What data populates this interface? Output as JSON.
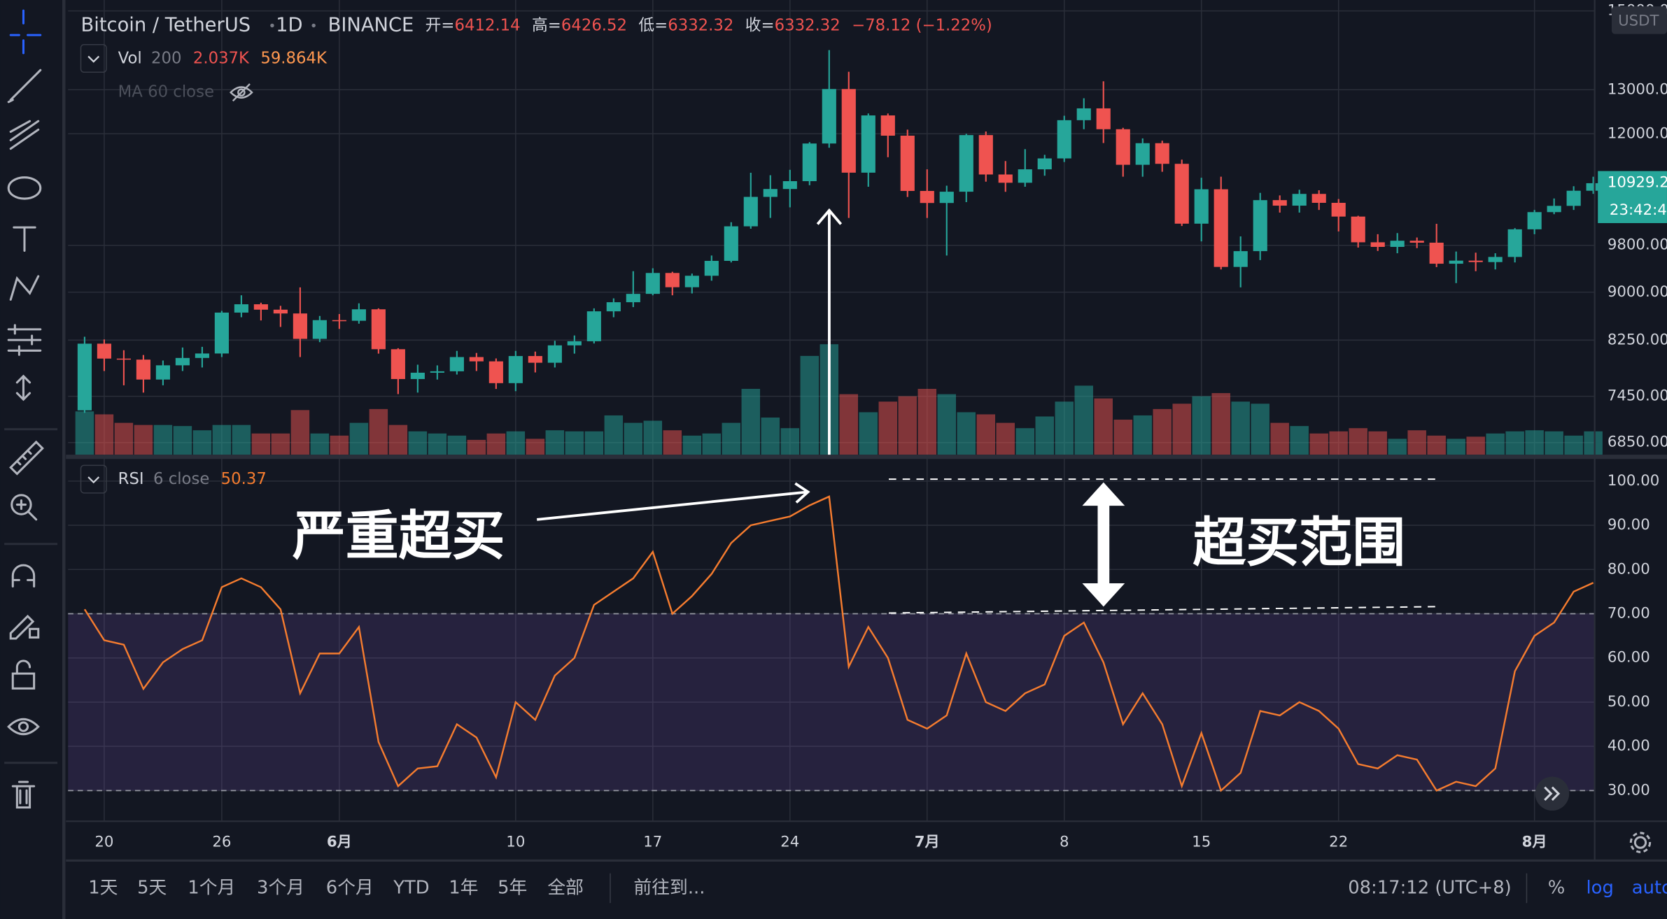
{
  "header": {
    "symbol": "Bitcoin / TetherUS",
    "interval": "1D",
    "exchange": "BINANCE",
    "open_label": "开=",
    "open": 6412.14,
    "high_label": "高=",
    "high": 6426.52,
    "low_label": "低=",
    "low": 6332.32,
    "close_label": "收=",
    "close": 6332.32,
    "change": "−78.12 (−1.22%)"
  },
  "volume_legend": {
    "name": "Vol",
    "length": "200",
    "value": "2.037K",
    "ma_value": "59.864K"
  },
  "ma_legend": {
    "name": "MA 60 close"
  },
  "rsi_legend": {
    "name": "RSI",
    "params": "6 close",
    "value": "50.37"
  },
  "price_scale": {
    "currency": "USDT",
    "last_price": "10929.2",
    "countdown": "23:42:4"
  },
  "bottom_bar": {
    "ranges": [
      "1天",
      "5天",
      "1个月",
      "3个月",
      "6个月",
      "YTD",
      "1年",
      "5年",
      "全部"
    ],
    "goto": "前往到...",
    "time": "08:17:12 (UTC+8)",
    "percent": "%",
    "log": "log",
    "auto": "auto"
  },
  "chart_data": [
    {
      "type": "candlestick",
      "log_scale": true,
      "grid": true,
      "up_color": "#26a69a",
      "down_color": "#ef5350",
      "categories": [
        null,
        "20",
        null,
        null,
        null,
        null,
        null,
        "26",
        null,
        null,
        null,
        null,
        null,
        "6月",
        null,
        null,
        null,
        null,
        null,
        null,
        null,
        null,
        "10",
        null,
        null,
        null,
        null,
        null,
        null,
        "17",
        null,
        null,
        null,
        null,
        null,
        null,
        "24",
        null,
        null,
        null,
        null,
        null,
        null,
        "7月",
        null,
        null,
        null,
        null,
        null,
        null,
        "8",
        null,
        null,
        null,
        null,
        null,
        null,
        "15",
        null,
        null,
        null,
        null,
        null,
        null,
        "22",
        null,
        null,
        null,
        null,
        null,
        null,
        null,
        null,
        null,
        "8月",
        null,
        null,
        null
      ],
      "open": [
        7262,
        8197,
        7978,
        7963,
        7680,
        7881,
        7987,
        8052,
        8673,
        8805,
        8719,
        8659,
        8269,
        8555,
        8545,
        8725,
        8115,
        7687,
        7776,
        7796,
        8000,
        7938,
        7630,
        8015,
        7918,
        8172,
        8233,
        8693,
        8838,
        8973,
        9320,
        9082,
        9273,
        9527,
        10144,
        10701,
        10855,
        11011,
        11790,
        13016,
        11182,
        12407,
        11959,
        10817,
        10583,
        10802,
        11972,
        11145,
        10979,
        11250,
        11475,
        12300,
        12567,
        12100,
        11343,
        11797,
        11363,
        10193,
        10850,
        9423,
        9697,
        10638,
        10532,
        10759,
        10586,
        10325,
        9854,
        9772,
        9882,
        9847,
        9478,
        9531,
        9506,
        9595,
        10089,
        10409,
        10528,
        10821
      ],
      "high": [
        8300,
        8260,
        8100,
        8030,
        7950,
        8140,
        8150,
        8700,
        8950,
        8830,
        8780,
        9080,
        8620,
        8650,
        8820,
        8740,
        8130,
        7890,
        7880,
        8090,
        8060,
        7980,
        8090,
        8080,
        8240,
        8320,
        8740,
        8900,
        9350,
        9400,
        9340,
        9310,
        9620,
        10220,
        11180,
        11130,
        11240,
        11820,
        13970,
        13430,
        12450,
        12450,
        12090,
        11250,
        10920,
        12000,
        12050,
        11420,
        11670,
        11550,
        12400,
        12800,
        13200,
        12130,
        11900,
        11850,
        11450,
        11080,
        11100,
        9960,
        10780,
        10730,
        10840,
        10830,
        10660,
        10340,
        10000,
        10020,
        9940,
        10190,
        9690,
        9670,
        9660,
        10110,
        10450,
        10670,
        10910,
        11100
      ],
      "low": [
        7230,
        7800,
        7600,
        7500,
        7600,
        7800,
        7850,
        8000,
        8600,
        8550,
        8450,
        8000,
        8220,
        8420,
        8500,
        8050,
        7480,
        7500,
        7680,
        7750,
        7800,
        7550,
        7520,
        7780,
        7850,
        8050,
        8200,
        8600,
        8760,
        8950,
        8950,
        8980,
        9190,
        9500,
        10100,
        10300,
        10500,
        10930,
        11700,
        10300,
        10900,
        11500,
        10700,
        10300,
        9620,
        10600,
        11000,
        10800,
        10900,
        11120,
        11400,
        12100,
        11800,
        11100,
        11100,
        11200,
        10150,
        9870,
        9380,
        9080,
        9540,
        10400,
        10400,
        10450,
        10050,
        9760,
        9700,
        9660,
        9750,
        9420,
        9150,
        9350,
        9380,
        9500,
        10000,
        10370,
        10450,
        10760
      ],
      "close": [
        8197,
        7978,
        7963,
        7680,
        7881,
        7987,
        8052,
        8673,
        8805,
        8719,
        8659,
        8269,
        8555,
        8545,
        8725,
        8115,
        7687,
        7776,
        7796,
        8000,
        7938,
        7630,
        8015,
        7918,
        8172,
        8233,
        8693,
        8838,
        8973,
        9320,
        9082,
        9273,
        9527,
        10144,
        10701,
        10855,
        11011,
        11790,
        13016,
        11182,
        12407,
        11959,
        10817,
        10583,
        10802,
        11972,
        11145,
        10979,
        11250,
        11475,
        12300,
        12567,
        12100,
        11343,
        11797,
        11363,
        10193,
        10850,
        9423,
        9697,
        10638,
        10532,
        10759,
        10586,
        10325,
        9854,
        9772,
        9882,
        9847,
        9478,
        9531,
        9506,
        9595,
        10089,
        10409,
        10528,
        10821,
        10970
      ],
      "volume": {
        "values": [
          2.04,
          1.9,
          1.5,
          1.4,
          1.4,
          1.35,
          1.15,
          1.4,
          1.4,
          1.0,
          1.0,
          2.1,
          1.0,
          0.9,
          1.5,
          2.15,
          1.4,
          1.1,
          1.0,
          0.9,
          0.7,
          1.0,
          1.1,
          0.75,
          1.15,
          1.1,
          1.1,
          1.85,
          1.5,
          1.6,
          1.15,
          0.9,
          1.0,
          1.5,
          3.1,
          1.75,
          1.25,
          4.65,
          5.2,
          2.85,
          2.0,
          2.5,
          2.75,
          3.1,
          2.85,
          2.0,
          1.9,
          1.5,
          1.25,
          1.8,
          2.5,
          3.25,
          2.65,
          1.65,
          1.85,
          2.15,
          2.4,
          2.75,
          2.9,
          2.5,
          2.4,
          1.5,
          1.35,
          1.0,
          1.1,
          1.25,
          1.1,
          0.75,
          1.15,
          0.9,
          0.75,
          0.85,
          1.0,
          1.1,
          1.15,
          1.1,
          0.9,
          1.1
        ],
        "ylim": [
          0,
          21.4
        ]
      },
      "ylim": [
        6700,
        15300
      ],
      "yticks": [
        {
          "value": 6850,
          "label": "6850.00"
        },
        {
          "value": 7450,
          "label": "7450.00"
        },
        {
          "value": 8250,
          "label": "8250.00"
        },
        {
          "value": 9000,
          "label": "9000.00"
        },
        {
          "value": 9800,
          "label": "9800.00"
        },
        {
          "value": 12000,
          "label": "12000.00"
        },
        {
          "value": 13000,
          "label": "13000.00"
        },
        {
          "value": 15000,
          "label": "15000.0"
        }
      ]
    },
    {
      "type": "line",
      "color": "#f57c2f",
      "grid": true,
      "band": [
        30,
        70
      ],
      "band_color": "#7e57c2",
      "values": [
        71,
        64,
        63,
        53,
        59,
        62,
        64,
        76,
        78,
        76,
        71,
        52,
        61,
        61,
        67,
        41,
        31,
        35,
        35.5,
        45,
        42,
        33,
        50,
        46,
        56,
        60,
        72,
        75,
        78,
        84,
        70,
        74,
        79,
        86,
        90,
        91,
        92,
        94.5,
        96.5,
        58,
        67,
        60,
        46,
        44,
        47,
        61,
        50,
        48,
        52,
        54,
        65,
        68,
        59,
        45,
        52,
        45,
        31,
        43,
        30,
        34,
        48,
        47,
        50,
        48,
        44,
        36,
        35,
        38,
        37,
        30,
        32,
        31,
        35,
        57,
        65,
        68,
        75,
        77
      ],
      "ylim": [
        23.3,
        105
      ],
      "yticks": [
        {
          "value": 30,
          "label": "30.00"
        },
        {
          "value": 40,
          "label": "40.00"
        },
        {
          "value": 50,
          "label": "50.00"
        },
        {
          "value": 60,
          "label": "60.00"
        },
        {
          "value": 70,
          "label": "70.00"
        },
        {
          "value": 80,
          "label": "80.00"
        },
        {
          "value": 90,
          "label": "90.00"
        },
        {
          "value": 100,
          "label": "100.00"
        }
      ],
      "annotations": [
        "严重超买",
        "超买范围"
      ]
    }
  ]
}
